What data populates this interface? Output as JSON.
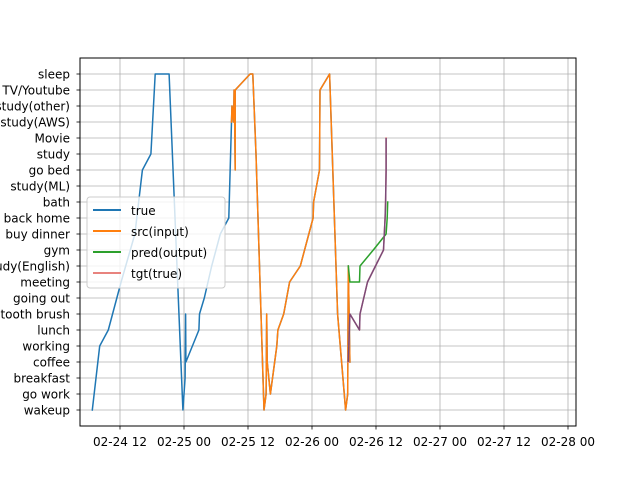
{
  "chart_data": {
    "type": "line",
    "title": "",
    "xlabel": "",
    "ylabel": "",
    "grid": true,
    "legend_placement": "center-left",
    "x_ticks": [
      "02-24 12",
      "02-25 00",
      "02-25 12",
      "02-26 00",
      "02-26 12",
      "02-27 00",
      "02-27 12",
      "02-28 00"
    ],
    "x_tick_hours": [
      12,
      24,
      36,
      48,
      60,
      72,
      84,
      96
    ],
    "xlim_hours": [
      4.5,
      97.5
    ],
    "y_categories": [
      "wakeup",
      "go work",
      "breakfast",
      "coffee",
      "working",
      "lunch",
      "tooth brush",
      "going out",
      "meeting",
      "study(English)",
      "gym",
      "buy dinner",
      "back home",
      "bath",
      "study(ML)",
      "go bed",
      "study",
      "Movie",
      "study(AWS)",
      "study(other)",
      "TV/Youtube",
      "sleep"
    ],
    "series": [
      {
        "name": "true",
        "color": "#1f77b4",
        "points": [
          [
            6.8,
            0
          ],
          [
            8.2,
            4
          ],
          [
            9.8,
            5
          ],
          [
            12.2,
            8
          ],
          [
            14.8,
            11
          ],
          [
            16.2,
            15
          ],
          [
            17.8,
            16
          ],
          [
            18.6,
            21
          ],
          [
            19.6,
            21
          ],
          [
            21.2,
            21
          ],
          [
            23.8,
            0
          ],
          [
            24.2,
            2
          ],
          [
            24.3,
            6
          ],
          [
            24.35,
            3
          ],
          [
            26.8,
            5
          ],
          [
            26.9,
            6
          ],
          [
            27.8,
            7
          ],
          [
            29.2,
            9
          ],
          [
            30.8,
            11
          ],
          [
            32.4,
            12
          ],
          [
            32.9,
            18
          ],
          [
            33.0,
            19
          ],
          [
            33.3,
            18
          ],
          [
            33.4,
            20
          ],
          [
            33.5,
            18
          ],
          [
            33.6,
            15
          ],
          [
            33.6,
            20
          ],
          [
            36.4,
            21
          ],
          [
            36.9,
            21
          ],
          [
            37.5,
            16
          ],
          [
            39.0,
            0
          ],
          [
            39.4,
            1
          ],
          [
            39.5,
            6
          ],
          [
            39.6,
            3
          ],
          [
            40.2,
            1
          ],
          [
            41.4,
            4
          ],
          [
            41.6,
            5
          ],
          [
            42.7,
            6
          ],
          [
            43.8,
            8
          ],
          [
            45.8,
            9
          ],
          [
            48.2,
            12
          ],
          [
            48.3,
            13
          ],
          [
            49.4,
            15
          ],
          [
            49.5,
            20
          ],
          [
            51.3,
            21
          ],
          [
            52.8,
            6
          ],
          [
            54.3,
            0
          ],
          [
            54.7,
            1
          ],
          [
            54.8,
            9
          ],
          [
            55.1,
            3
          ]
        ]
      },
      {
        "name": "src(input)",
        "color": "#ff7f0e",
        "points": [
          [
            32.9,
            18
          ],
          [
            33.0,
            19
          ],
          [
            33.3,
            18
          ],
          [
            33.4,
            20
          ],
          [
            33.5,
            18
          ],
          [
            33.6,
            15
          ],
          [
            33.6,
            20
          ],
          [
            36.4,
            21
          ],
          [
            36.9,
            21
          ],
          [
            37.5,
            16
          ],
          [
            39.0,
            0
          ],
          [
            39.4,
            1
          ],
          [
            39.5,
            6
          ],
          [
            39.6,
            3
          ],
          [
            40.2,
            1
          ],
          [
            41.4,
            4
          ],
          [
            41.6,
            5
          ],
          [
            42.7,
            6
          ],
          [
            43.8,
            8
          ],
          [
            45.8,
            9
          ],
          [
            48.2,
            12
          ],
          [
            48.3,
            13
          ],
          [
            49.4,
            15
          ],
          [
            49.5,
            20
          ],
          [
            51.3,
            21
          ],
          [
            52.8,
            6
          ],
          [
            54.3,
            0
          ],
          [
            54.7,
            1
          ],
          [
            54.8,
            9
          ],
          [
            55.1,
            3
          ]
        ]
      },
      {
        "name": "pred(output)",
        "color": "#2ca02c",
        "points": [
          [
            54.8,
            9
          ],
          [
            55.1,
            8
          ],
          [
            56.9,
            8
          ],
          [
            57.0,
            9
          ],
          [
            59.5,
            10
          ],
          [
            61.9,
            11
          ],
          [
            62.1,
            12
          ],
          [
            62.2,
            13
          ]
        ]
      },
      {
        "name": "tgt(true)",
        "color": "#e8837e",
        "points": [
          [
            54.8,
            3
          ],
          [
            55.1,
            6
          ],
          [
            56.9,
            5
          ],
          [
            57.0,
            6
          ],
          [
            58.4,
            8
          ],
          [
            59.9,
            9
          ],
          [
            61.4,
            10
          ],
          [
            61.7,
            12
          ],
          [
            61.8,
            13
          ],
          [
            61.9,
            15
          ],
          [
            61.9,
            17
          ]
        ]
      }
    ],
    "overlap_color": "#7b4a78"
  }
}
